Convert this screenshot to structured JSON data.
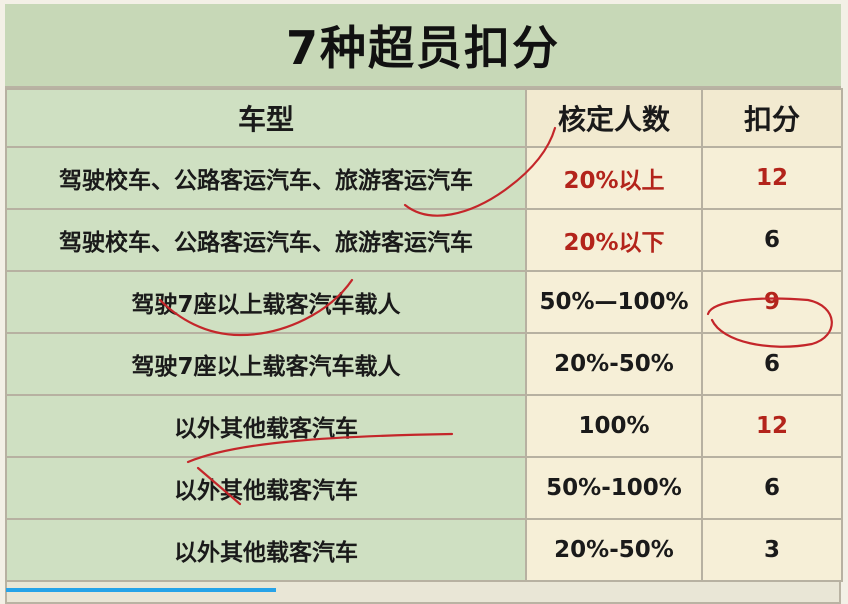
{
  "title": "7种超员扣分",
  "headers": {
    "type": "车型",
    "capacity": "核定人数",
    "points": "扣分"
  },
  "rows": [
    {
      "type": "驾驶校车、公路客运汽车、旅游客运汽车",
      "capacity": "20%以上",
      "points": "12",
      "capacity_red": true,
      "points_red": true
    },
    {
      "type": "驾驶校车、公路客运汽车、旅游客运汽车",
      "capacity": "20%以下",
      "points": "6",
      "capacity_red": true,
      "points_red": false
    },
    {
      "type": "驾驶7座以上载客汽车载人",
      "capacity": "50%—100%",
      "points": "9",
      "capacity_red": false,
      "points_red": true
    },
    {
      "type": "驾驶7座以上载客汽车载人",
      "capacity": "20%-50%",
      "points": "6",
      "capacity_red": false,
      "points_red": false
    },
    {
      "type": "以外其他载客汽车",
      "capacity": "100%",
      "points": "12",
      "capacity_red": false,
      "points_red": true
    },
    {
      "type": "以外其他载客汽车",
      "capacity": "50%-100%",
      "points": "6",
      "capacity_red": false,
      "points_red": false
    },
    {
      "type": "以外其他载客汽车",
      "capacity": "20%-50%",
      "points": "3",
      "capacity_red": false,
      "points_red": false
    }
  ],
  "colors": {
    "accent_red": "#b3241b",
    "header_green": "#c7d8b7",
    "cell_cream": "#f6efd7",
    "progress_blue": "#27a3e8"
  }
}
